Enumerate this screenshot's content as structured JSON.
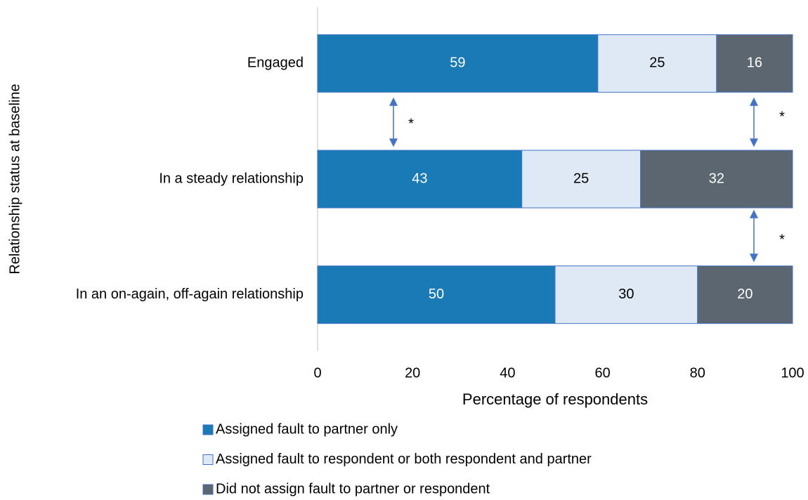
{
  "chart_data": {
    "type": "stacked_barh",
    "categories": [
      "Engaged",
      "In a steady relationship",
      "In an on-again, off-again relationship"
    ],
    "series": [
      {
        "name": "Assigned fault to partner only",
        "color": "#1a7ab5",
        "label_color": "#ffffff",
        "values": [
          59,
          43,
          50
        ]
      },
      {
        "name": "Assigned fault to respondent or both respondent and partner",
        "color": "#dfe9f5",
        "label_color": "#000000",
        "values": [
          25,
          25,
          30
        ]
      },
      {
        "name": "Did not assign fault to partner or respondent",
        "color": "#5b6670",
        "label_color": "#ffffff",
        "values": [
          16,
          32,
          20
        ]
      }
    ],
    "xlim": [
      0,
      100
    ],
    "xticks": [
      0,
      20,
      40,
      60,
      80,
      100
    ],
    "xlabel": "Percentage of respondents",
    "ylabel": "Relationship status at baseline",
    "annotations": [
      "*",
      "*",
      "*"
    ],
    "grid": false,
    "legend": "bottom"
  }
}
